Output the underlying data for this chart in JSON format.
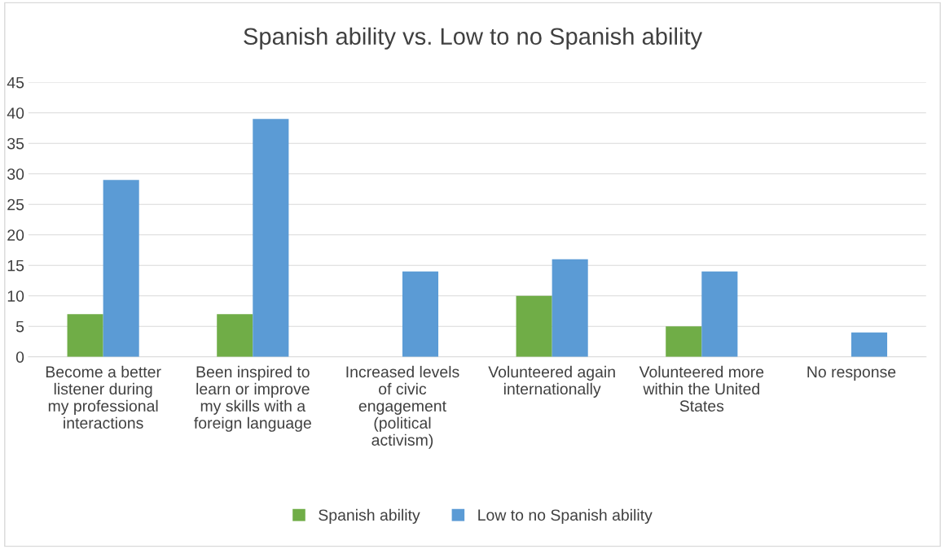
{
  "chart_data": {
    "type": "bar",
    "title": "Spanish ability vs. Low to no Spanish ability",
    "categories": [
      "Become a better listener during my professional interactions",
      "Been inspired to learn or improve my skills with a foreign language",
      "Increased levels of civic engagement (political activism)",
      "Volunteered again internationally",
      "Volunteered more within the United States",
      "No response"
    ],
    "series": [
      {
        "name": "Spanish ability",
        "color": "#70ad47",
        "values": [
          7,
          7,
          0,
          10,
          5,
          0
        ]
      },
      {
        "name": "Low to no Spanish ability",
        "color": "#5b9bd5",
        "values": [
          29,
          39,
          14,
          16,
          14,
          4
        ]
      }
    ],
    "ylim": [
      0,
      45
    ],
    "yticks": [
      0,
      5,
      10,
      15,
      20,
      25,
      30,
      35,
      40,
      45
    ],
    "grid": "y",
    "legend": "bottom"
  }
}
